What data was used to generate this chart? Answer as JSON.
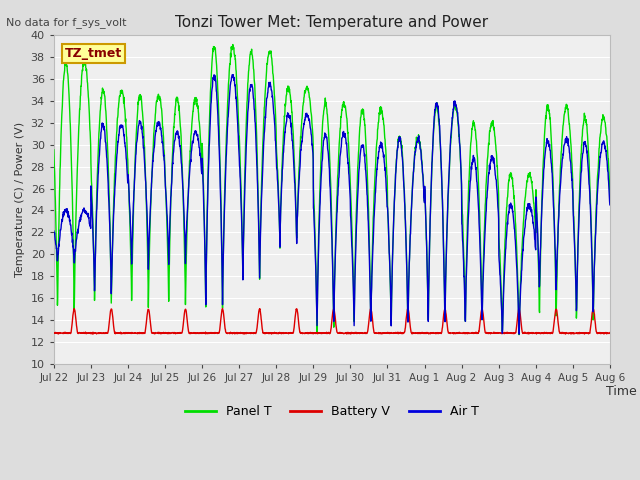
{
  "title": "Tonzi Tower Met: Temperature and Power",
  "top_left_text": "No data for f_sys_volt",
  "ylabel": "Temperature (C) / Power (V)",
  "xlabel": "Time",
  "ylim": [
    10,
    40
  ],
  "yticks": [
    10,
    12,
    14,
    16,
    18,
    20,
    22,
    24,
    26,
    28,
    30,
    32,
    34,
    36,
    38,
    40
  ],
  "xtick_labels": [
    "Jul 22",
    "Jul 23",
    "Jul 24",
    "Jul 25",
    "Jul 26",
    "Jul 27",
    "Jul 28",
    "Jul 29",
    "Jul 30",
    "Jul 31",
    "Aug 1",
    "Aug 2",
    "Aug 3",
    "Aug 4",
    "Aug 5",
    "Aug 6"
  ],
  "legend_labels": [
    "Panel T",
    "Battery V",
    "Air T"
  ],
  "legend_colors": [
    "#00dd00",
    "#dd0000",
    "#0000dd"
  ],
  "annotation_label": "TZ_tmet",
  "annotation_box_color": "#ffff99",
  "annotation_box_edge": "#cc9900",
  "panel_color": "#00dd00",
  "battery_color": "#dd0000",
  "air_color": "#0000cc",
  "n_days": 15,
  "n_points_per_day": 144,
  "panel_peaks": [
    37.5,
    35.0,
    34.5,
    34.2,
    39.0,
    38.5,
    35.2,
    33.8,
    33.2,
    30.7,
    33.5,
    32.0,
    27.3,
    33.5,
    32.5
  ],
  "panel_troughs": [
    14.0,
    15.0,
    15.0,
    15.0,
    14.5,
    17.2,
    20.5,
    12.5,
    13.0,
    13.0,
    13.0,
    13.0,
    12.0,
    13.5,
    13.0
  ],
  "air_peaks": [
    24.0,
    31.8,
    32.0,
    31.2,
    36.3,
    35.5,
    32.8,
    31.0,
    30.0,
    30.5,
    33.8,
    28.8,
    24.5,
    30.5,
    30.2
  ],
  "air_troughs": [
    19.0,
    15.8,
    18.5,
    18.8,
    15.0,
    17.2,
    20.8,
    13.0,
    13.0,
    13.0,
    13.0,
    13.0,
    12.0,
    16.0,
    14.0
  ],
  "battery_base": 12.8,
  "battery_peak": 15.0
}
